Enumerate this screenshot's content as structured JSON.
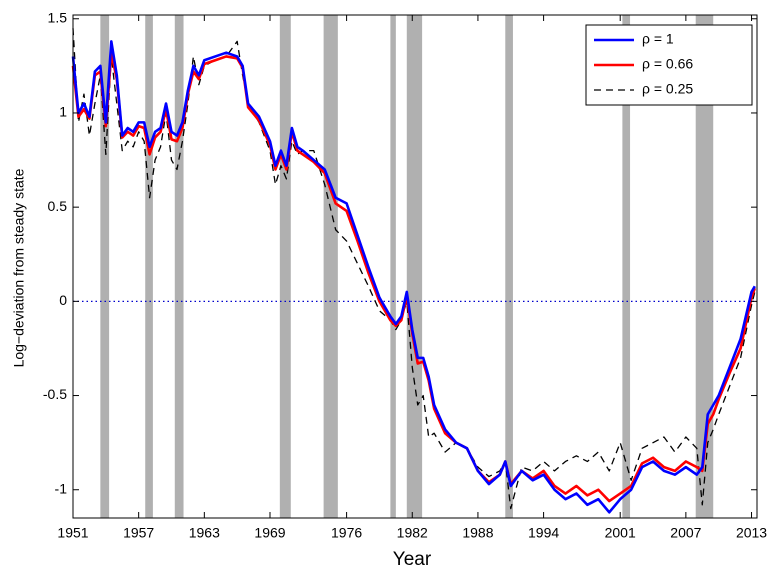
{
  "chart_data": {
    "type": "line",
    "x_label": "Year",
    "y_label": "Log−deviation from steady state",
    "xlim": [
      1951,
      2013.5
    ],
    "ylim": [
      -1.15,
      1.52
    ],
    "xticks": [
      1951,
      1957,
      1963,
      1969,
      1976,
      1982,
      1988,
      1994,
      2001,
      2007,
      2013
    ],
    "yticks": [
      -1,
      -0.5,
      0,
      0.5,
      1,
      1.5
    ],
    "grid": false,
    "legend": "upper right",
    "reference_line": 0,
    "reference_color": "#0000cc",
    "recession_color": "#b0b0b0",
    "recessions": [
      [
        1953.5,
        1954.3
      ],
      [
        1957.6,
        1958.3
      ],
      [
        1960.3,
        1961.1
      ],
      [
        1969.9,
        1970.9
      ],
      [
        1973.9,
        1975.2
      ],
      [
        1980.0,
        1980.5
      ],
      [
        1981.5,
        1982.9
      ],
      [
        1990.5,
        1991.2
      ],
      [
        2001.2,
        2001.9
      ],
      [
        2007.9,
        2009.5
      ]
    ],
    "x": [
      1951,
      1951.5,
      1952,
      1952.5,
      1953,
      1953.5,
      1954,
      1954.5,
      1955,
      1955.5,
      1956,
      1956.5,
      1957,
      1957.5,
      1958,
      1958.5,
      1959,
      1959.5,
      1960,
      1960.5,
      1961,
      1961.5,
      1962,
      1962.5,
      1963,
      1964,
      1965,
      1966,
      1966.5,
      1967,
      1968,
      1969,
      1969.5,
      1970,
      1970.5,
      1971,
      1971.5,
      1972,
      1973,
      1974,
      1975,
      1976,
      1977,
      1978,
      1979,
      1980,
      1980.5,
      1981,
      1981.5,
      1982,
      1982.5,
      1983,
      1983.5,
      1984,
      1985,
      1986,
      1987,
      1988,
      1989,
      1990,
      1990.5,
      1991,
      1992,
      1993,
      1994,
      1995,
      1996,
      1997,
      1998,
      1999,
      2000,
      2001,
      2002,
      2003,
      2004,
      2005,
      2006,
      2007,
      2008,
      2008.5,
      2009,
      2009.5,
      2010,
      2011,
      2012,
      2013,
      2013.3
    ],
    "series": [
      {
        "name": "ρ = 0.25",
        "color": "#000000",
        "dash": true,
        "values": [
          1.45,
          0.95,
          1.1,
          0.88,
          1.05,
          1.2,
          0.78,
          1.3,
          1.05,
          0.8,
          0.85,
          0.82,
          0.9,
          0.85,
          0.55,
          0.75,
          0.82,
          1.0,
          0.75,
          0.7,
          0.85,
          1.05,
          1.3,
          1.15,
          1.25,
          1.28,
          1.3,
          1.38,
          1.2,
          1.05,
          0.95,
          0.8,
          0.62,
          0.72,
          0.65,
          0.85,
          0.78,
          0.8,
          0.8,
          0.62,
          0.38,
          0.32,
          0.2,
          0.08,
          -0.05,
          -0.1,
          -0.15,
          -0.1,
          0.0,
          -0.35,
          -0.55,
          -0.5,
          -0.72,
          -0.7,
          -0.8,
          -0.75,
          -0.78,
          -0.88,
          -0.93,
          -0.9,
          -0.85,
          -1.1,
          -0.88,
          -0.9,
          -0.85,
          -0.9,
          -0.85,
          -0.82,
          -0.85,
          -0.8,
          -0.9,
          -0.75,
          -0.95,
          -0.78,
          -0.75,
          -0.72,
          -0.8,
          -0.72,
          -0.78,
          -1.08,
          -0.75,
          -0.68,
          -0.6,
          -0.45,
          -0.3,
          -0.02,
          0.05
        ]
      },
      {
        "name": "ρ = 0.66",
        "color": "#ff0000",
        "dash": false,
        "values": [
          1.25,
          0.98,
          1.02,
          0.97,
          1.2,
          1.22,
          0.93,
          1.32,
          1.18,
          0.87,
          0.9,
          0.88,
          0.93,
          0.92,
          0.78,
          0.87,
          0.9,
          1.02,
          0.86,
          0.85,
          0.92,
          1.1,
          1.22,
          1.18,
          1.26,
          1.28,
          1.3,
          1.29,
          1.24,
          1.03,
          0.96,
          0.83,
          0.7,
          0.78,
          0.7,
          0.9,
          0.8,
          0.78,
          0.74,
          0.68,
          0.52,
          0.48,
          0.32,
          0.15,
          0.0,
          -0.1,
          -0.13,
          -0.1,
          0.03,
          -0.17,
          -0.33,
          -0.32,
          -0.42,
          -0.57,
          -0.7,
          -0.75,
          -0.78,
          -0.9,
          -0.96,
          -0.92,
          -0.85,
          -0.97,
          -0.9,
          -0.94,
          -0.9,
          -0.98,
          -1.02,
          -0.98,
          -1.03,
          -1.0,
          -1.06,
          -1.02,
          -0.98,
          -0.86,
          -0.83,
          -0.88,
          -0.9,
          -0.85,
          -0.88,
          -0.9,
          -0.65,
          -0.6,
          -0.52,
          -0.38,
          -0.25,
          0.02,
          0.07
        ]
      },
      {
        "name": "ρ = 1",
        "color": "#0000ff",
        "dash": false,
        "values": [
          1.3,
          1.0,
          1.05,
          0.98,
          1.22,
          1.25,
          0.95,
          1.38,
          1.2,
          0.88,
          0.92,
          0.9,
          0.95,
          0.95,
          0.82,
          0.9,
          0.92,
          1.05,
          0.9,
          0.88,
          0.95,
          1.12,
          1.25,
          1.2,
          1.28,
          1.3,
          1.32,
          1.3,
          1.25,
          1.05,
          0.98,
          0.85,
          0.72,
          0.8,
          0.72,
          0.92,
          0.82,
          0.8,
          0.75,
          0.7,
          0.55,
          0.52,
          0.35,
          0.18,
          0.02,
          -0.08,
          -0.12,
          -0.08,
          0.05,
          -0.15,
          -0.3,
          -0.3,
          -0.4,
          -0.55,
          -0.68,
          -0.75,
          -0.78,
          -0.9,
          -0.97,
          -0.92,
          -0.85,
          -0.98,
          -0.9,
          -0.95,
          -0.92,
          -1.0,
          -1.05,
          -1.02,
          -1.08,
          -1.05,
          -1.12,
          -1.05,
          -1.0,
          -0.88,
          -0.85,
          -0.9,
          -0.92,
          -0.88,
          -0.92,
          -0.88,
          -0.6,
          -0.55,
          -0.5,
          -0.35,
          -0.2,
          0.05,
          0.08
        ]
      }
    ]
  }
}
